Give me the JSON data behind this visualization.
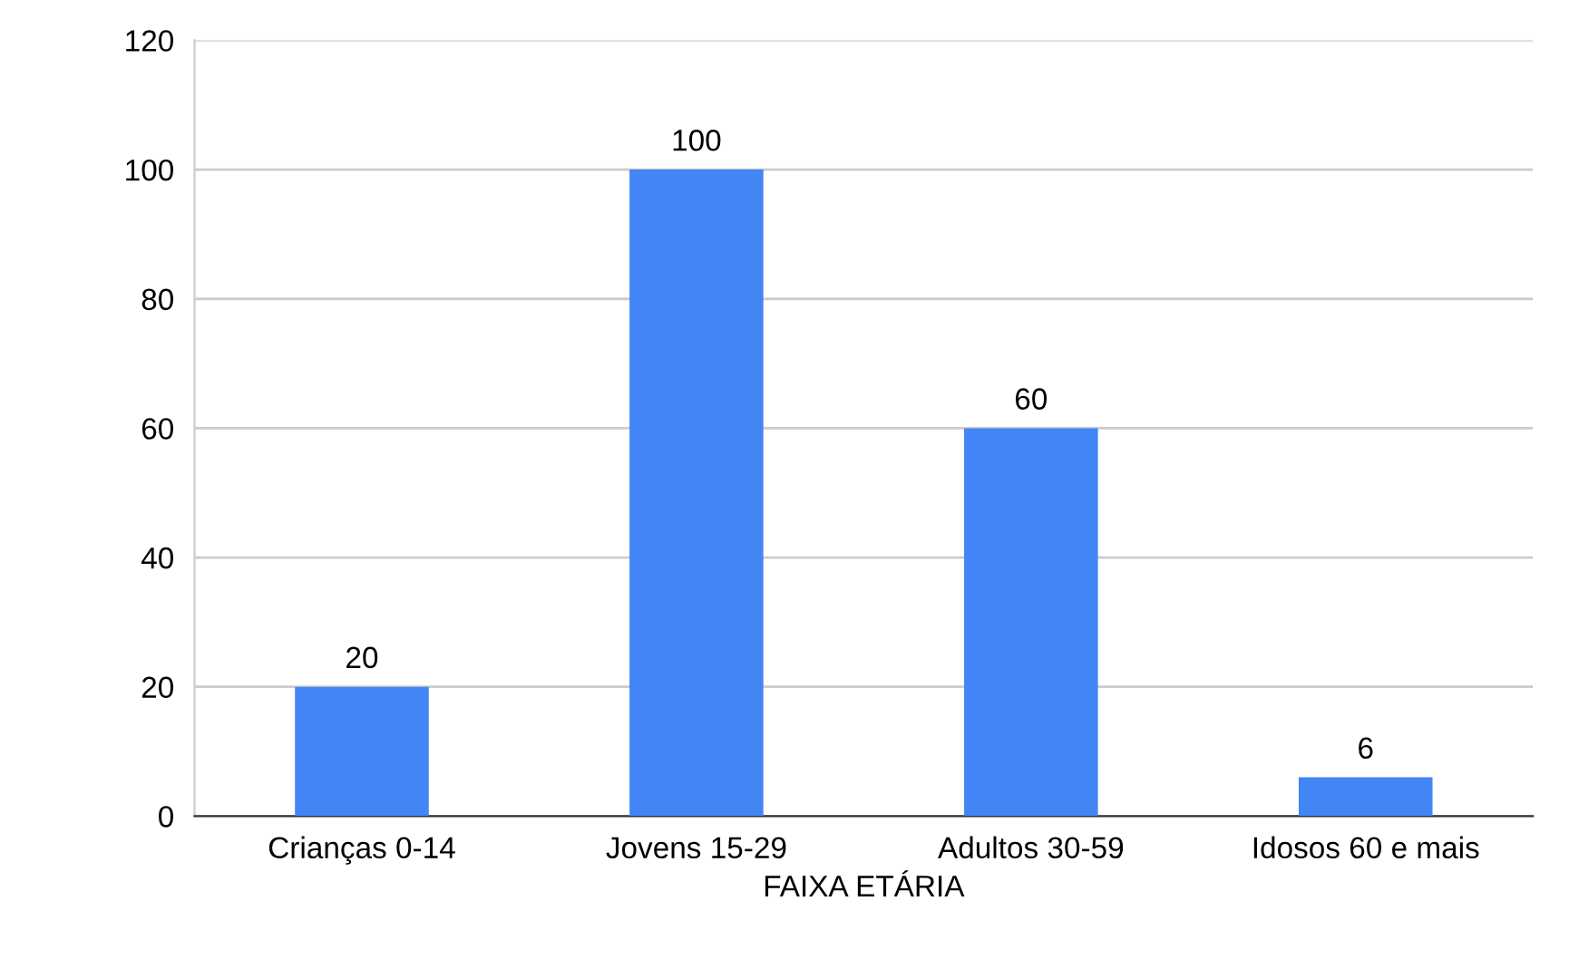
{
  "chart_data": {
    "type": "bar",
    "xlabel": "FAIXA ETÁRIA",
    "categories": [
      "Crianças 0-14",
      "Jovens 15-29",
      "Adultos 30-59",
      "Idosos 60 e mais"
    ],
    "values": [
      20,
      100,
      60,
      6
    ],
    "color": "#4285f4",
    "ylim": [
      0,
      120
    ],
    "yticks": [
      0,
      20,
      40,
      60,
      80,
      100,
      120
    ],
    "grid": "y",
    "data_labels": true
  }
}
